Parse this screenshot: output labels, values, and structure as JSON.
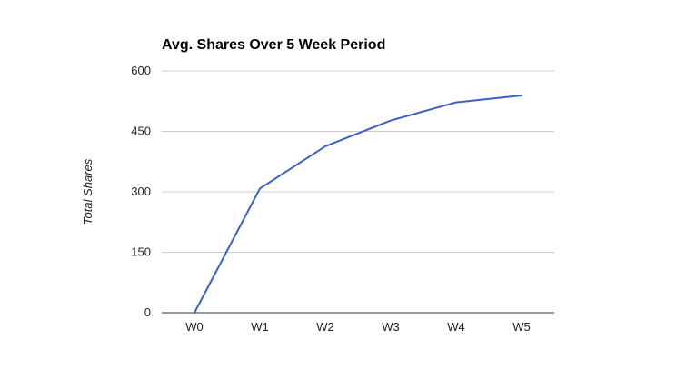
{
  "chart_data": {
    "type": "line",
    "title": "Avg. Shares Over 5 Week Period",
    "xlabel": "",
    "ylabel": "Total Shares",
    "categories": [
      "W0",
      "W1",
      "W2",
      "W3",
      "W4",
      "W5"
    ],
    "series": [
      {
        "values": [
          0,
          308,
          413,
          477,
          522,
          539
        ],
        "color": "#3b5fc9"
      }
    ],
    "ylim": [
      0,
      600
    ],
    "yticks": [
      0,
      150,
      300,
      450,
      600
    ],
    "grid": true,
    "legend": "none"
  }
}
